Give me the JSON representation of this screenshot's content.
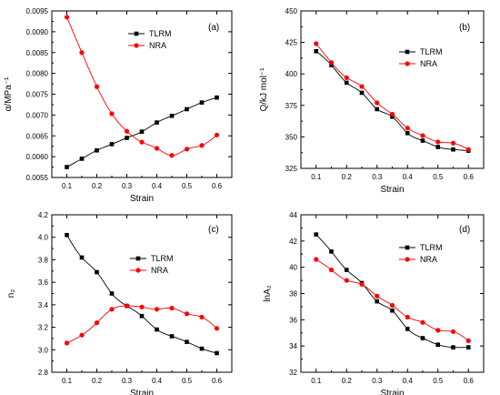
{
  "colors": {
    "tlrm": "#000000",
    "nra": "#ff0000",
    "axis": "#000000"
  },
  "chart_data": [
    {
      "type": "scatter",
      "panel_label": "(a)",
      "xlabel": "Strain",
      "ylabel": "α/MPa⁻¹",
      "xlim": [
        0.05,
        0.65
      ],
      "ylim": [
        0.0055,
        0.0095
      ],
      "xticks": [
        0.1,
        0.2,
        0.3,
        0.4,
        0.5,
        0.6
      ],
      "xtick_labels": [
        "0.1",
        "0.2",
        "0.3",
        "0.4",
        "0.5",
        "0.6"
      ],
      "yticks": [
        0.0055,
        0.006,
        0.0065,
        0.007,
        0.0075,
        0.008,
        0.0085,
        0.009,
        0.0095
      ],
      "ytick_labels": [
        "0.0055",
        "0.0060",
        "0.0065",
        "0.0070",
        "0.0075",
        "0.0080",
        "0.0085",
        "0.0090",
        "0.0095"
      ],
      "legend_position": "top-center",
      "x": [
        0.1,
        0.15,
        0.2,
        0.25,
        0.3,
        0.35,
        0.4,
        0.45,
        0.5,
        0.55,
        0.6
      ],
      "series": [
        {
          "name": "TLRM",
          "marker": "square",
          "color": "#000000",
          "values": [
            0.00575,
            0.00595,
            0.00615,
            0.0063,
            0.00645,
            0.0066,
            0.00682,
            0.00698,
            0.00714,
            0.0073,
            0.00742
          ]
        },
        {
          "name": "NRA",
          "marker": "circle",
          "color": "#ff0000",
          "values": [
            0.00935,
            0.0085,
            0.00768,
            0.00703,
            0.00661,
            0.00635,
            0.0062,
            0.00603,
            0.00618,
            0.00627,
            0.00652
          ]
        }
      ]
    },
    {
      "type": "scatter",
      "panel_label": "(b)",
      "xlabel": "Strain",
      "ylabel": "Q/kJ mol⁻¹",
      "xlim": [
        0.05,
        0.65
      ],
      "ylim": [
        325,
        450
      ],
      "xticks": [
        0.1,
        0.2,
        0.3,
        0.4,
        0.5,
        0.6
      ],
      "xtick_labels": [
        "0.1",
        "0.2",
        "0.3",
        "0.4",
        "0.5",
        "0.6"
      ],
      "yticks": [
        325,
        350,
        375,
        400,
        425,
        450
      ],
      "ytick_labels": [
        "325",
        "350",
        "375",
        "400",
        "425",
        "450"
      ],
      "legend_position": "top-right",
      "x": [
        0.1,
        0.15,
        0.2,
        0.25,
        0.3,
        0.35,
        0.4,
        0.45,
        0.5,
        0.55,
        0.6
      ],
      "series": [
        {
          "name": "TLRM",
          "marker": "square",
          "color": "#000000",
          "values": [
            418,
            407,
            393,
            385,
            372,
            366,
            353,
            347,
            342,
            340,
            339
          ]
        },
        {
          "name": "NRA",
          "marker": "circle",
          "color": "#ff0000",
          "values": [
            424,
            409,
            397,
            390,
            377,
            368,
            357,
            351,
            346,
            345,
            340
          ]
        }
      ]
    },
    {
      "type": "scatter",
      "panel_label": "(c)",
      "xlabel": "Strain",
      "ylabel": "n₂",
      "xlim": [
        0.05,
        0.65
      ],
      "ylim": [
        2.8,
        4.2
      ],
      "xticks": [
        0.1,
        0.2,
        0.3,
        0.4,
        0.5,
        0.6
      ],
      "xtick_labels": [
        "0.1",
        "0.2",
        "0.3",
        "0.4",
        "0.5",
        "0.6"
      ],
      "yticks": [
        2.8,
        3.0,
        3.2,
        3.4,
        3.6,
        3.8,
        4.0,
        4.2
      ],
      "ytick_labels": [
        "2.8",
        "3.0",
        "3.2",
        "3.4",
        "3.6",
        "3.8",
        "4.0",
        "4.2"
      ],
      "legend_position": "right",
      "x": [
        0.1,
        0.15,
        0.2,
        0.25,
        0.3,
        0.35,
        0.4,
        0.45,
        0.5,
        0.55,
        0.6
      ],
      "series": [
        {
          "name": "TLRM",
          "marker": "square",
          "color": "#000000",
          "values": [
            4.02,
            3.82,
            3.69,
            3.5,
            3.39,
            3.3,
            3.18,
            3.12,
            3.07,
            3.01,
            2.97
          ]
        },
        {
          "name": "NRA",
          "marker": "circle",
          "color": "#ff0000",
          "values": [
            3.06,
            3.13,
            3.24,
            3.36,
            3.39,
            3.38,
            3.36,
            3.37,
            3.32,
            3.29,
            3.19
          ]
        }
      ]
    },
    {
      "type": "scatter",
      "panel_label": "(d)",
      "xlabel": "Strain",
      "ylabel": "lnA₂",
      "xlim": [
        0.05,
        0.65
      ],
      "ylim": [
        32,
        44
      ],
      "xticks": [
        0.1,
        0.2,
        0.3,
        0.4,
        0.5,
        0.6
      ],
      "xtick_labels": [
        "0.1",
        "0.2",
        "0.3",
        "0.4",
        "0.5",
        "0.6"
      ],
      "yticks": [
        32,
        34,
        36,
        38,
        40,
        42,
        44
      ],
      "ytick_labels": [
        "32",
        "34",
        "36",
        "38",
        "40",
        "42",
        "44"
      ],
      "legend_position": "top-right",
      "x": [
        0.1,
        0.15,
        0.2,
        0.25,
        0.3,
        0.35,
        0.4,
        0.45,
        0.5,
        0.55,
        0.6
      ],
      "series": [
        {
          "name": "TLRM",
          "marker": "square",
          "color": "#000000",
          "values": [
            42.5,
            41.2,
            39.8,
            38.8,
            37.4,
            36.7,
            35.3,
            34.6,
            34.1,
            33.9,
            33.9
          ]
        },
        {
          "name": "NRA",
          "marker": "circle",
          "color": "#ff0000",
          "values": [
            40.6,
            39.8,
            39.0,
            38.7,
            37.8,
            37.1,
            36.2,
            35.8,
            35.2,
            35.1,
            34.4
          ]
        }
      ]
    }
  ]
}
